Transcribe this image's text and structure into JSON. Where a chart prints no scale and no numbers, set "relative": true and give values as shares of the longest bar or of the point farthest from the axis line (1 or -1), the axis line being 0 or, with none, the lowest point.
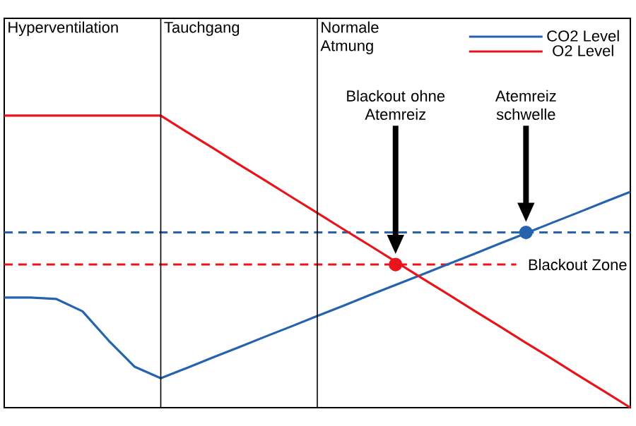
{
  "chart_data": {
    "type": "line",
    "relative": true,
    "legend": "top right",
    "categories": [
      null,
      null,
      null,
      null,
      null,
      null,
      null,
      null,
      null,
      null,
      null,
      null,
      null,
      null,
      null,
      null,
      null,
      null,
      null,
      null,
      null,
      null,
      null,
      null,
      null
    ],
    "series": [
      {
        "name": "CO2 Level",
        "color": "#2563ae",
        "values": [
          0.377,
          0.377,
          0.372,
          0.33,
          0.23,
          0.14,
          0.101,
          0.136,
          0.172,
          0.207,
          0.243,
          0.278,
          0.314,
          0.349,
          0.385,
          0.42,
          0.455,
          0.491,
          0.526,
          0.562,
          0.597,
          0.633,
          0.668,
          0.704,
          0.739
        ]
      },
      {
        "name": "O2 Level",
        "color": "#e8141c",
        "values": [
          1,
          1,
          1,
          1,
          1,
          1,
          1,
          0.944,
          0.889,
          0.833,
          0.778,
          0.722,
          0.667,
          0.611,
          0.556,
          0.5,
          0.444,
          0.389,
          0.333,
          0.278,
          0.222,
          0.167,
          0.111,
          0.056,
          0
        ]
      },
      {
        "color": "#e8141c",
        "marker": "circle",
        "values": [
          null,
          null,
          null,
          null,
          null,
          null,
          null,
          null,
          null,
          null,
          null,
          null,
          null,
          null,
          null,
          0.49,
          null,
          null,
          null,
          null,
          null,
          null,
          null,
          null,
          null
        ]
      },
      {
        "color": "#2563ae",
        "marker": "circle",
        "values": [
          null,
          null,
          null,
          null,
          null,
          null,
          null,
          null,
          null,
          null,
          null,
          null,
          null,
          null,
          null,
          null,
          null,
          null,
          null,
          null,
          0.6,
          null,
          null,
          null,
          null
        ]
      }
    ],
    "ref_lines": [
      {
        "axis": "y",
        "value": 0.6,
        "color": "#2563ae",
        "line_style": "dashed"
      },
      {
        "axis": "y",
        "value": 0.49,
        "label": "Blackout Zone",
        "color": "#e8141c",
        "line_style": "dashed"
      }
    ],
    "annotations": [
      "Hyperventilation",
      "Tauchgang",
      "Normale Atmung",
      "Blackout ohne Atemreiz",
      "Atemreiz schwelle"
    ]
  }
}
